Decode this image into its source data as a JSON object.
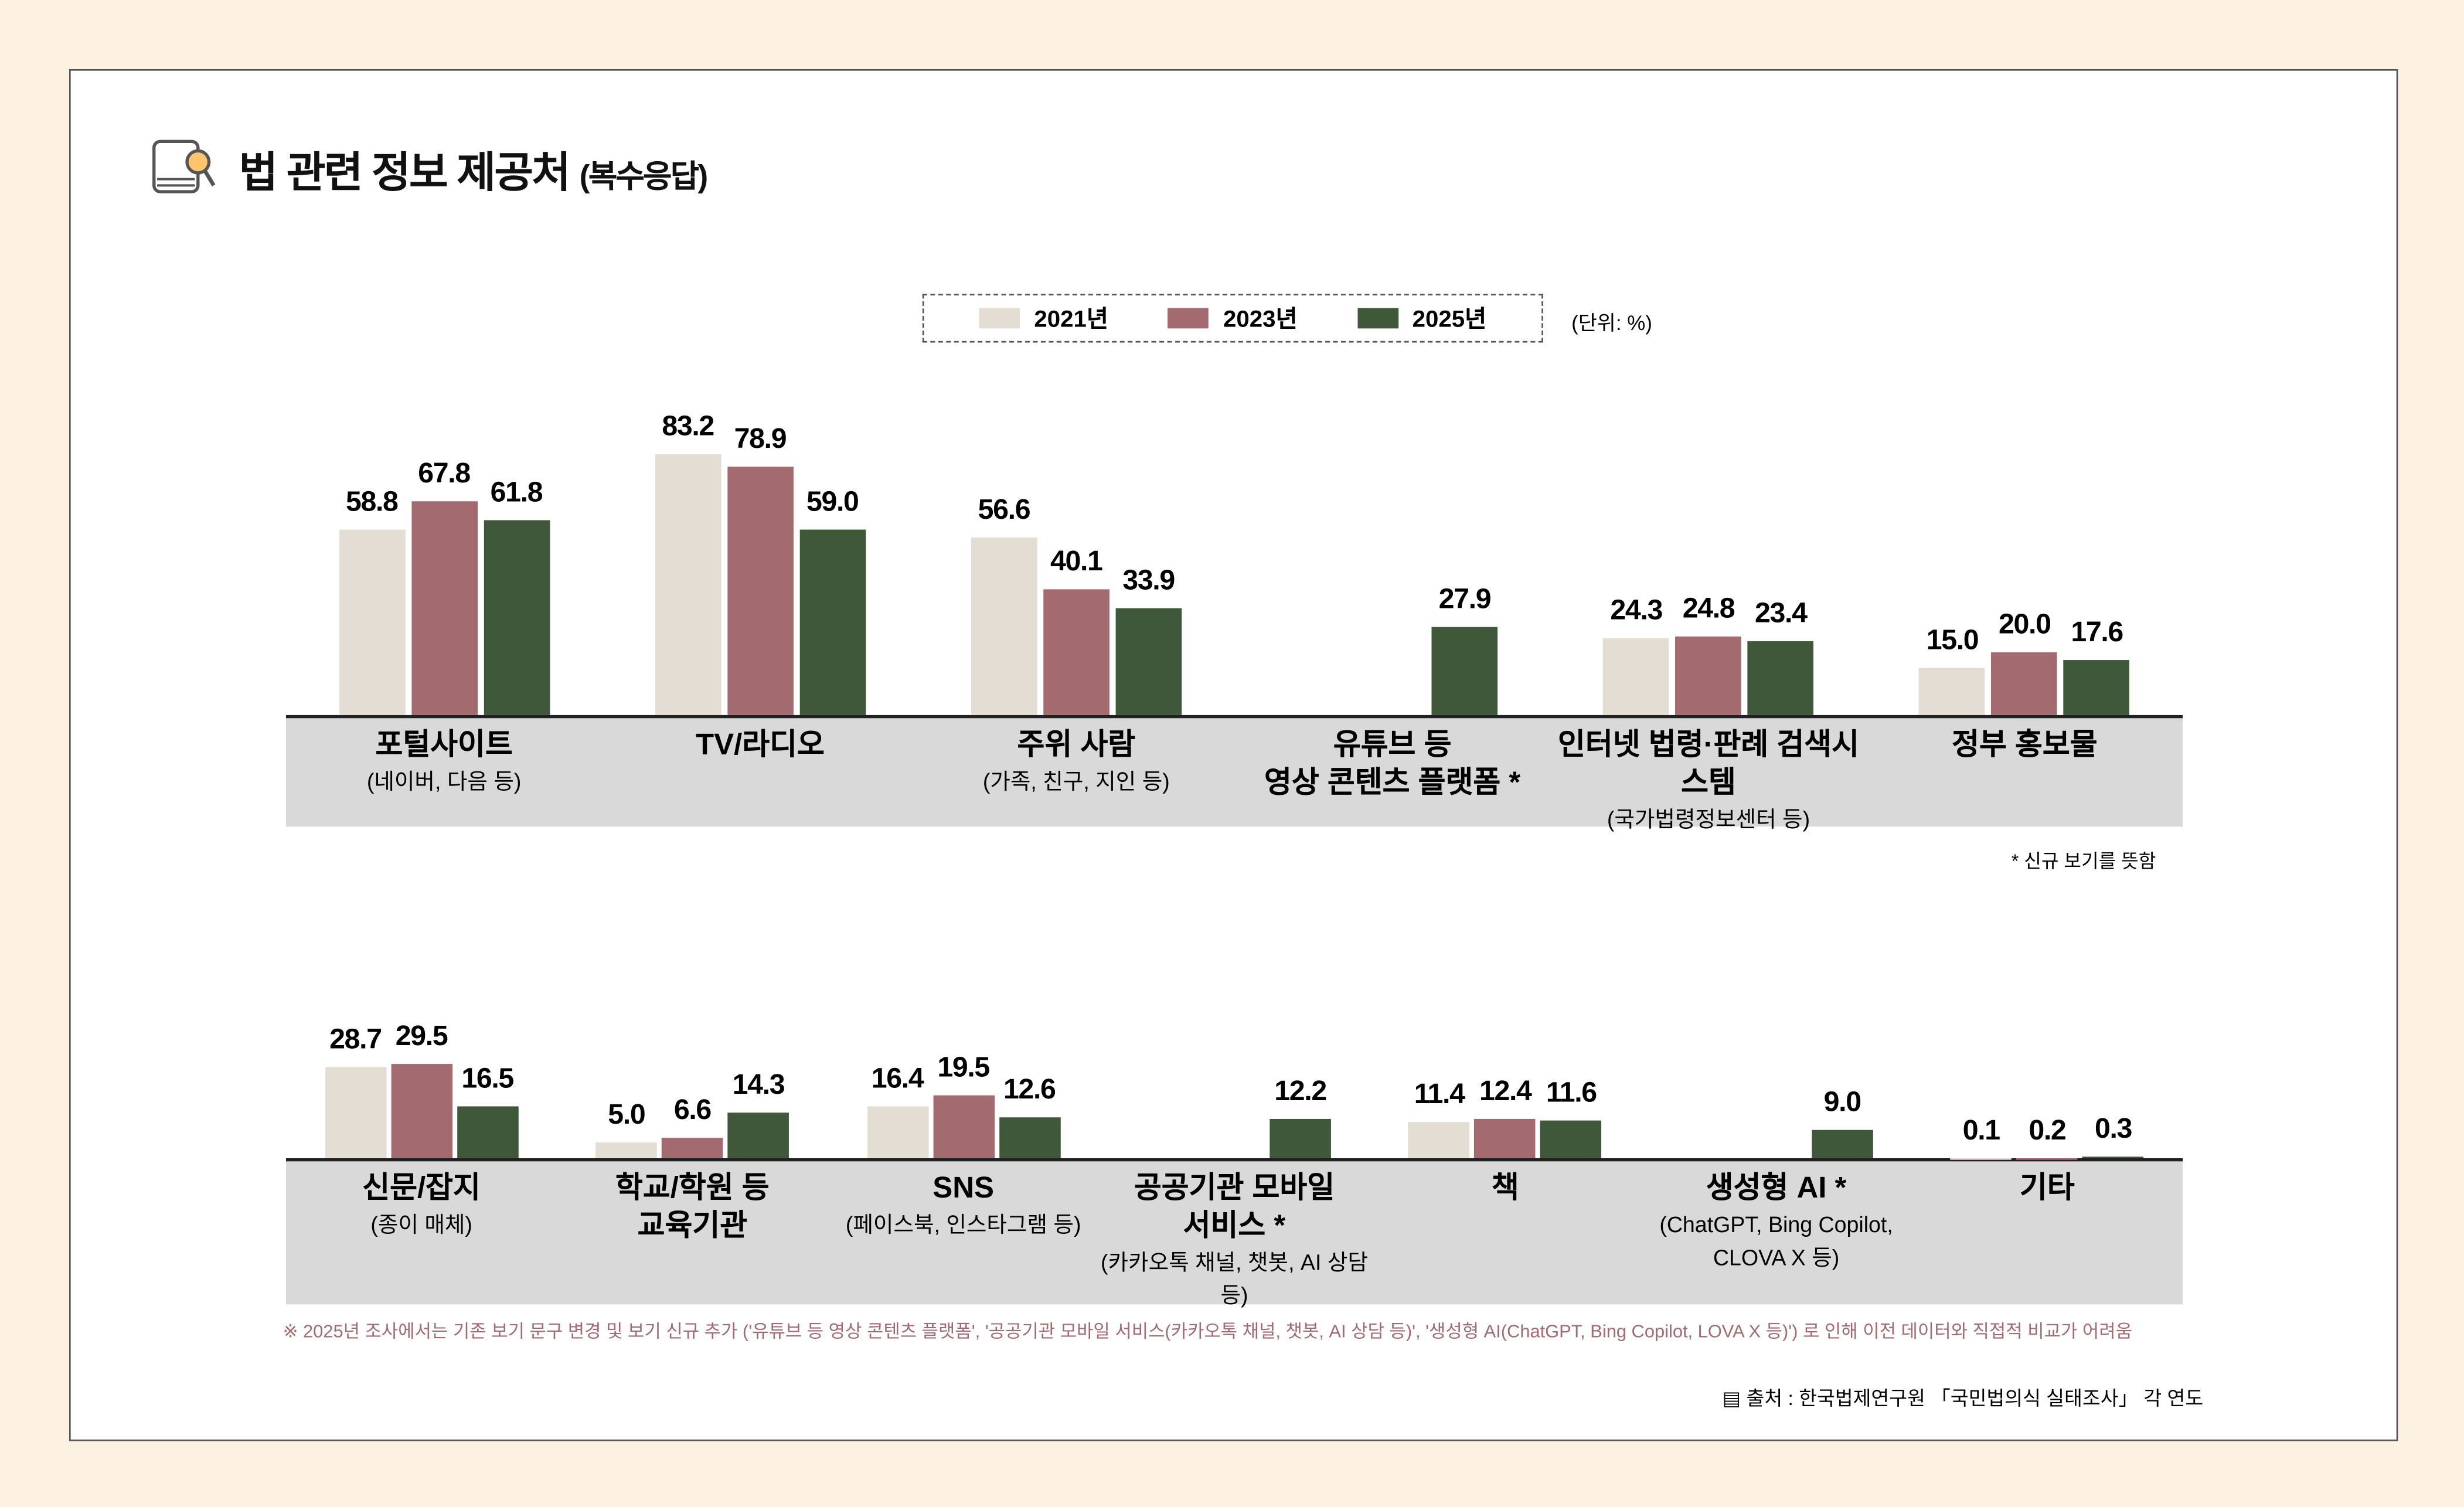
{
  "title": "법 관련 정보 제공처",
  "title_suffix": "(복수응답)",
  "icon": "book-magnifier-icon",
  "unit": "(단위: %)",
  "colors": {
    "2021년": "#e3ddd3",
    "2023년": "#a36a70",
    "2025년": "#3f583a",
    "band": "#d9d9d9",
    "note": "#a36a70"
  },
  "chart_data": [
    {
      "type": "bar",
      "legend": [
        "2021년",
        "2023년",
        "2025년"
      ],
      "categories": [
        {
          "main": "포털사이트",
          "sub": "(네이버, 다음 등)"
        },
        {
          "main": "TV/라디오",
          "sub": ""
        },
        {
          "main": "주위 사람",
          "sub": "(가족, 친구, 지인 등)"
        },
        {
          "main": "유튜브 등\n영상 콘텐츠 플랫폼 *",
          "sub": ""
        },
        {
          "main": "인터넷 법령·판례 검색시스템",
          "sub": "(국가법령정보센터 등)"
        },
        {
          "main": "정부 홍보물",
          "sub": ""
        }
      ],
      "series": [
        {
          "name": "2021년",
          "values": [
            58.8,
            83.2,
            56.6,
            null,
            24.3,
            15.0
          ]
        },
        {
          "name": "2023년",
          "values": [
            67.8,
            78.9,
            40.1,
            null,
            24.8,
            20.0
          ]
        },
        {
          "name": "2025년",
          "values": [
            61.8,
            59.0,
            33.9,
            27.9,
            23.4,
            17.6
          ]
        }
      ],
      "grid": false
    },
    {
      "type": "bar",
      "legend": [
        "2021년",
        "2023년",
        "2025년"
      ],
      "categories": [
        {
          "main": "신문/잡지",
          "sub": "(종이 매체)"
        },
        {
          "main": "학교/학원 등\n교육기관",
          "sub": ""
        },
        {
          "main": "SNS",
          "sub": "(페이스북, 인스타그램 등)"
        },
        {
          "main": "공공기관 모바일\n서비스 *",
          "sub": "(카카오톡 채널, 챗봇, AI 상담 등)"
        },
        {
          "main": "책",
          "sub": ""
        },
        {
          "main": "생성형 AI *",
          "sub": "(ChatGPT, Bing Copilot,\nCLOVA X 등)"
        },
        {
          "main": "기타",
          "sub": ""
        }
      ],
      "series": [
        {
          "name": "2021년",
          "values": [
            28.7,
            5.0,
            16.4,
            null,
            11.4,
            null,
            0.1
          ]
        },
        {
          "name": "2023년",
          "values": [
            29.5,
            6.6,
            19.5,
            null,
            12.4,
            null,
            0.2
          ]
        },
        {
          "name": "2025년",
          "values": [
            16.5,
            14.3,
            12.6,
            12.2,
            11.6,
            9.0,
            0.3
          ]
        }
      ],
      "grid": false
    }
  ],
  "note_new": "* 신규 보기를 뜻함",
  "footnote": "※ 2025년 조사에서는 기존 보기 문구 변경 및 보기 신규 추가 ('유튜브 등 영상 콘텐츠 플랫폼', '공공기관 모바일 서비스(카카오톡 채널, 챗봇, AI 상담 등)', '생성형 AI(ChatGPT, Bing Copilot, LOVA X 등)') 로 인해 이전 데이터와 직접적 비교가 어려움",
  "source": "출처 : 한국법제연구원 「국민법의식 실태조사」 각 연도",
  "source_icon": "document-icon"
}
